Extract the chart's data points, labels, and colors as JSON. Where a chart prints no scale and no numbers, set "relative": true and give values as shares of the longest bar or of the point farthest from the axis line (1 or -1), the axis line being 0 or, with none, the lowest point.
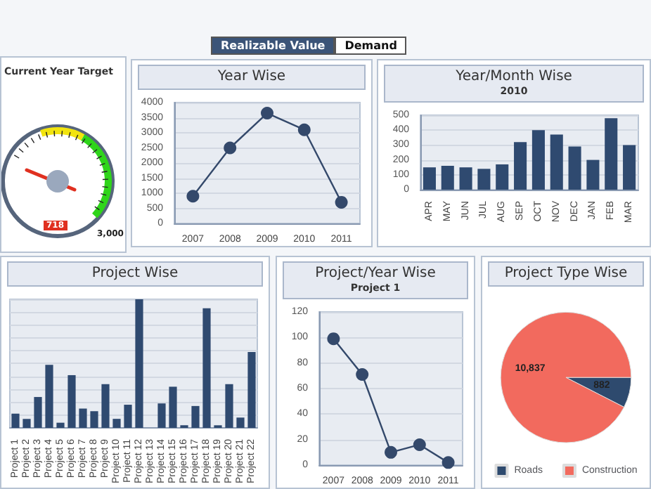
{
  "chart_data": [
    {
      "type": "other",
      "annotations": [
        "Realizable Value",
        "Demand"
      ]
    },
    {
      "type": "other",
      "title": "Current Year Target",
      "annotations": [
        "718",
        "3,000"
      ]
    },
    {
      "type": "line",
      "title": "Year Wise",
      "categories": [
        "2007",
        "2008",
        "2009",
        "2010",
        "2011"
      ],
      "values": [
        900,
        2500,
        3650,
        3100,
        700
      ],
      "color": "#34496b",
      "ylim": [
        0,
        4000
      ],
      "yticks": [
        0,
        500,
        1000,
        1500,
        2000,
        2500,
        3000,
        3500,
        4000
      ],
      "grid": "y",
      "marker": "circle",
      "line_style": "solid"
    },
    {
      "type": "bar",
      "title": "Year/Month Wise",
      "subtitle": "2010",
      "categories": [
        "APR",
        "MAY",
        "JUN",
        "JUL",
        "AUG",
        "SEP",
        "OCT",
        "NOV",
        "DEC",
        "JAN",
        "FEB",
        "MAR"
      ],
      "values": [
        150,
        160,
        150,
        140,
        170,
        320,
        400,
        370,
        290,
        200,
        480,
        300
      ],
      "color": "#2f4a70",
      "ylim": [
        0,
        500
      ],
      "yticks": [
        0,
        100,
        200,
        300,
        400,
        500
      ],
      "grid": "y"
    },
    {
      "type": "bar",
      "title": "Project Wise",
      "relative": true,
      "categories": [
        "Project 1",
        "Project 2",
        "Project 3",
        "Project 4",
        "Project 5",
        "Project 6",
        "Project 7",
        "Project 8",
        "Project 9",
        "Project 10",
        "Project 11",
        "Project 12",
        "Project 13",
        "Project 14",
        "Project 15",
        "Project 16",
        "Project 17",
        "Project 18",
        "Project 19",
        "Project 20",
        "Project 21",
        "Project 22"
      ],
      "values": [
        0.11,
        0.07,
        0.24,
        0.49,
        0.04,
        0.41,
        0.15,
        0.13,
        0.34,
        0.07,
        0.18,
        1,
        0,
        0.19,
        0.32,
        0.02,
        0.17,
        0.93,
        0.02,
        0.34,
        0.08,
        0.59
      ],
      "color": "#2f4a70",
      "grid": "y"
    },
    {
      "type": "line",
      "title": "Project/Year Wise",
      "subtitle": "Project 1",
      "categories": [
        "2007",
        "2008",
        "2009",
        "2010",
        "2011"
      ],
      "values": [
        99,
        71,
        10,
        16,
        2
      ],
      "color": "#34496b",
      "ylim": [
        0,
        120
      ],
      "yticks": [
        0,
        20,
        40,
        60,
        80,
        100,
        120
      ],
      "grid": "y",
      "marker": "circle",
      "line_style": "solid"
    },
    {
      "type": "pie",
      "title": "Project Type Wise",
      "categories": [
        "Roads",
        "Construction"
      ],
      "values": [
        882,
        10837
      ],
      "value_labels": [
        "882",
        "10,837"
      ],
      "colors": [
        "#2e4a6e",
        "#f26a5e"
      ],
      "legend": "bottom"
    }
  ]
}
